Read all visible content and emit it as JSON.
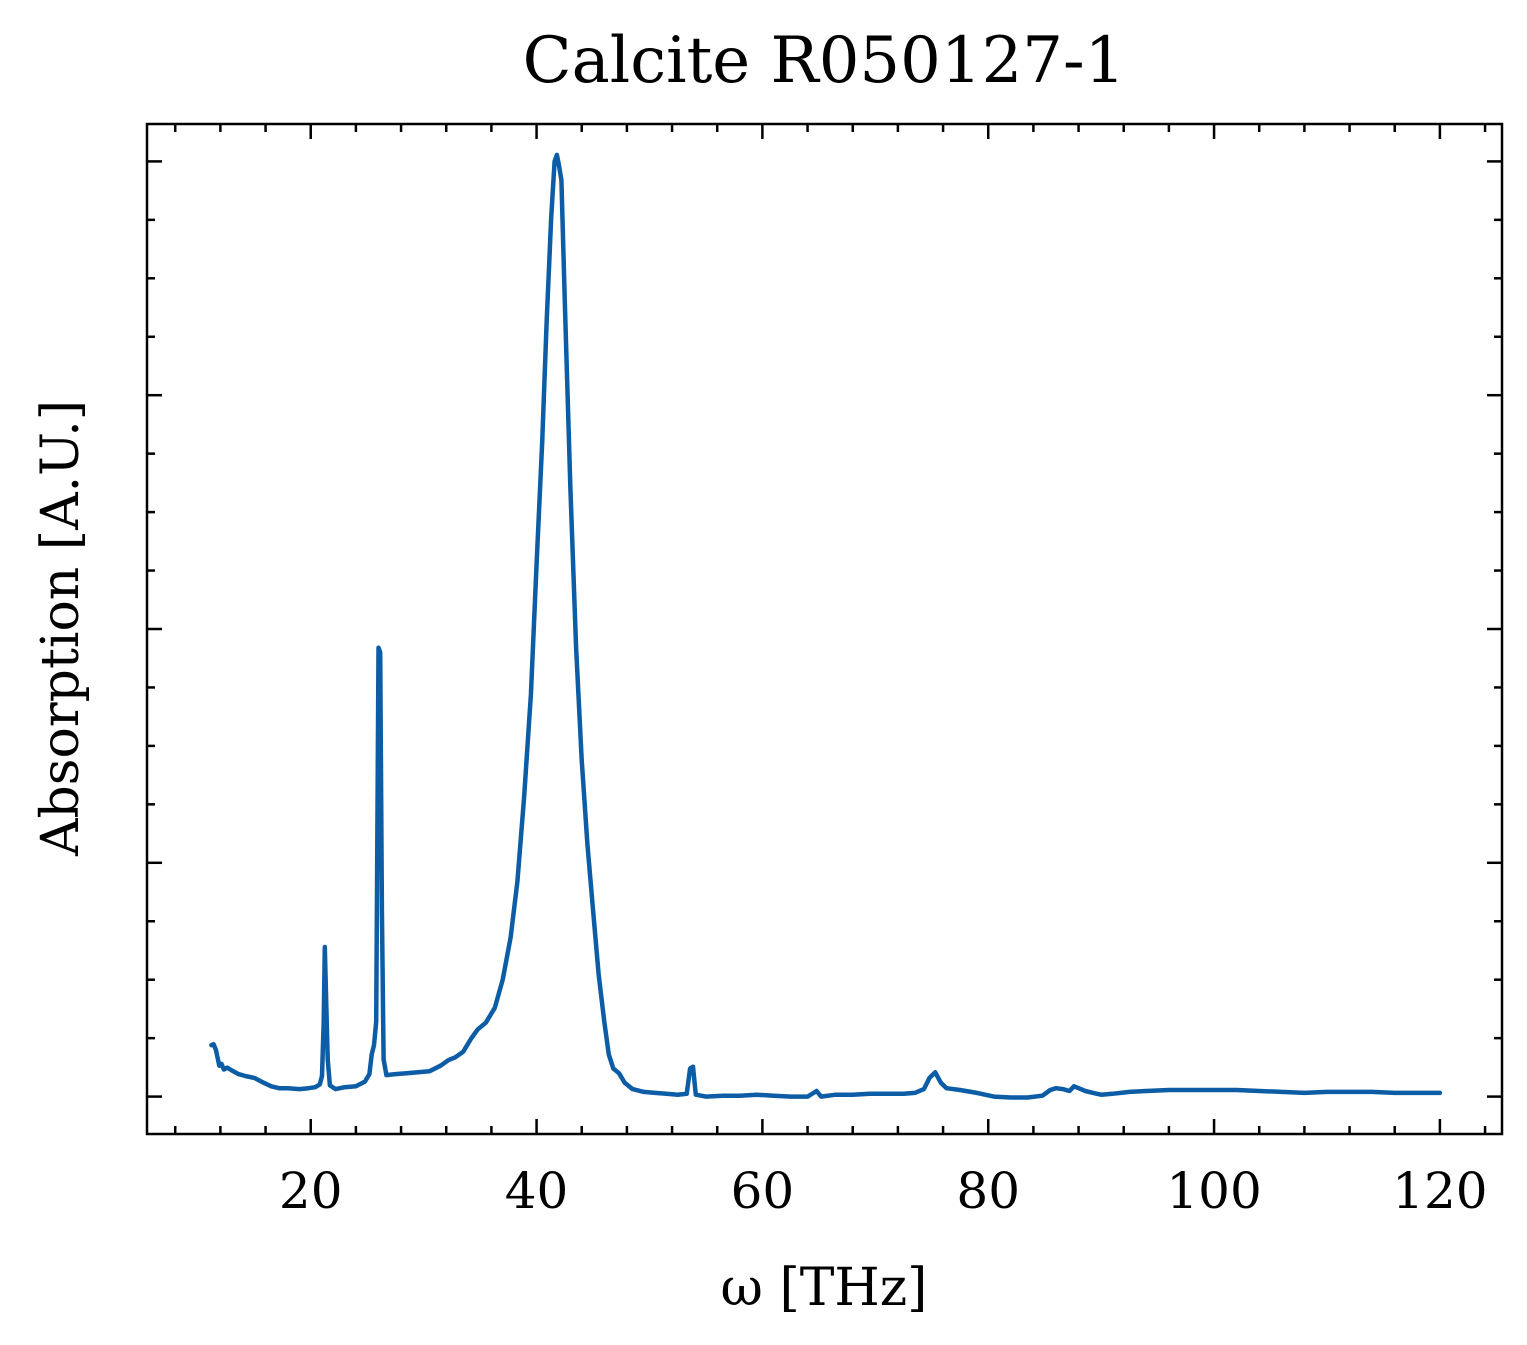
{
  "chart_data": {
    "type": "line",
    "title": "Calcite R050127-1",
    "xlabel": "ω [THz]",
    "ylabel": "Absorption [A.U.]",
    "xlim": [
      5.5,
      125.5
    ],
    "ylim": [
      -0.04,
      1.04
    ],
    "x_ticks": [
      20,
      40,
      60,
      80,
      100,
      120
    ],
    "x_tick_labels": [
      "20",
      "40",
      "60",
      "80",
      "100",
      "120"
    ],
    "x_minor_step": 4,
    "y_ticks": [
      0,
      0.25,
      0.5,
      0.75,
      1.0
    ],
    "y_tick_labels_shown": false,
    "y_minor_step": 0.0625,
    "grid": false,
    "line_color": "#0c5da5",
    "series": [
      {
        "points": [
          [
            11.2,
            0.055
          ],
          [
            11.4,
            0.056
          ],
          [
            11.6,
            0.05
          ],
          [
            11.9,
            0.033
          ],
          [
            12.1,
            0.035
          ],
          [
            12.3,
            0.029
          ],
          [
            12.6,
            0.031
          ],
          [
            13.0,
            0.028
          ],
          [
            13.6,
            0.024
          ],
          [
            14.2,
            0.022
          ],
          [
            15.0,
            0.02
          ],
          [
            15.8,
            0.015
          ],
          [
            16.5,
            0.011
          ],
          [
            17.2,
            0.009
          ],
          [
            18.0,
            0.009
          ],
          [
            19.0,
            0.008
          ],
          [
            19.8,
            0.009
          ],
          [
            20.4,
            0.01
          ],
          [
            20.8,
            0.013
          ],
          [
            21.0,
            0.022
          ],
          [
            21.15,
            0.08
          ],
          [
            21.25,
            0.16
          ],
          [
            21.35,
            0.11
          ],
          [
            21.5,
            0.04
          ],
          [
            21.7,
            0.012
          ],
          [
            22.2,
            0.008
          ],
          [
            23.0,
            0.01
          ],
          [
            24.0,
            0.011
          ],
          [
            24.8,
            0.016
          ],
          [
            25.2,
            0.024
          ],
          [
            25.4,
            0.045
          ],
          [
            25.6,
            0.055
          ],
          [
            25.8,
            0.08
          ],
          [
            26.0,
            0.48
          ],
          [
            26.15,
            0.475
          ],
          [
            26.3,
            0.2
          ],
          [
            26.45,
            0.04
          ],
          [
            26.7,
            0.023
          ],
          [
            27.5,
            0.024
          ],
          [
            28.5,
            0.025
          ],
          [
            29.5,
            0.026
          ],
          [
            30.5,
            0.027
          ],
          [
            31.5,
            0.033
          ],
          [
            32.2,
            0.039
          ],
          [
            32.8,
            0.042
          ],
          [
            33.5,
            0.048
          ],
          [
            34.2,
            0.062
          ],
          [
            34.8,
            0.072
          ],
          [
            35.5,
            0.079
          ],
          [
            36.3,
            0.095
          ],
          [
            37.0,
            0.125
          ],
          [
            37.7,
            0.17
          ],
          [
            38.3,
            0.23
          ],
          [
            38.9,
            0.32
          ],
          [
            39.5,
            0.43
          ],
          [
            40.0,
            0.57
          ],
          [
            40.5,
            0.7
          ],
          [
            40.9,
            0.83
          ],
          [
            41.3,
            0.94
          ],
          [
            41.6,
            1.0
          ],
          [
            41.8,
            1.007
          ],
          [
            42.0,
            0.995
          ],
          [
            42.2,
            0.98
          ],
          [
            42.5,
            0.85
          ],
          [
            43.0,
            0.65
          ],
          [
            43.5,
            0.48
          ],
          [
            44.0,
            0.36
          ],
          [
            44.5,
            0.27
          ],
          [
            45.0,
            0.2
          ],
          [
            45.5,
            0.13
          ],
          [
            46.0,
            0.08
          ],
          [
            46.4,
            0.045
          ],
          [
            46.8,
            0.03
          ],
          [
            47.3,
            0.025
          ],
          [
            47.8,
            0.015
          ],
          [
            48.5,
            0.008
          ],
          [
            49.5,
            0.005
          ],
          [
            50.5,
            0.004
          ],
          [
            51.5,
            0.003
          ],
          [
            52.5,
            0.002
          ],
          [
            53.3,
            0.003
          ],
          [
            53.6,
            0.03
          ],
          [
            53.85,
            0.032
          ],
          [
            54.1,
            0.002
          ],
          [
            55.0,
            0.0
          ],
          [
            56.5,
            0.001
          ],
          [
            58.0,
            0.001
          ],
          [
            59.5,
            0.002
          ],
          [
            61.0,
            0.001
          ],
          [
            62.5,
            0.0
          ],
          [
            64.0,
            0.0
          ],
          [
            64.8,
            0.006
          ],
          [
            65.2,
            0.0
          ],
          [
            66.5,
            0.002
          ],
          [
            68.0,
            0.002
          ],
          [
            69.5,
            0.003
          ],
          [
            71.0,
            0.003
          ],
          [
            72.5,
            0.003
          ],
          [
            73.5,
            0.004
          ],
          [
            74.3,
            0.008
          ],
          [
            74.8,
            0.02
          ],
          [
            75.3,
            0.026
          ],
          [
            75.8,
            0.015
          ],
          [
            76.3,
            0.009
          ],
          [
            77.5,
            0.007
          ],
          [
            79.0,
            0.004
          ],
          [
            80.5,
            0.0
          ],
          [
            82.0,
            -0.001
          ],
          [
            83.5,
            -0.001
          ],
          [
            84.8,
            0.001
          ],
          [
            85.5,
            0.007
          ],
          [
            86.0,
            0.009
          ],
          [
            86.6,
            0.008
          ],
          [
            87.2,
            0.006
          ],
          [
            87.6,
            0.011
          ],
          [
            88.0,
            0.009
          ],
          [
            88.6,
            0.006
          ],
          [
            89.3,
            0.004
          ],
          [
            90.0,
            0.002
          ],
          [
            91.0,
            0.003
          ],
          [
            92.5,
            0.005
          ],
          [
            94.0,
            0.006
          ],
          [
            96.0,
            0.007
          ],
          [
            98.0,
            0.007
          ],
          [
            100.0,
            0.007
          ],
          [
            102.0,
            0.007
          ],
          [
            104.0,
            0.006
          ],
          [
            106.0,
            0.005
          ],
          [
            108.0,
            0.004
          ],
          [
            110.0,
            0.005
          ],
          [
            112.0,
            0.005
          ],
          [
            114.0,
            0.005
          ],
          [
            116.0,
            0.004
          ],
          [
            118.0,
            0.004
          ],
          [
            120.0,
            0.004
          ]
        ]
      }
    ]
  }
}
